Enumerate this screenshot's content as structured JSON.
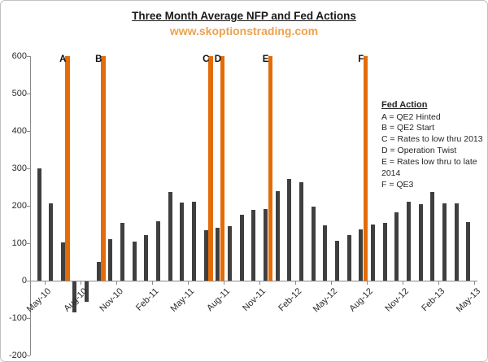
{
  "chart_data": {
    "type": "bar",
    "title": "Three Month Average NFP and Fed Actions",
    "subtitle": "www.skoptionstrading.com",
    "categories": [
      "May-10",
      "Jun-10",
      "Jul-10",
      "Aug-10",
      "Sep-10",
      "Oct-10",
      "Nov-10",
      "Dec-10",
      "Jan-11",
      "Feb-11",
      "Mar-11",
      "Apr-11",
      "May-11",
      "Jun-11",
      "Jul-11",
      "Aug-11",
      "Sep-11",
      "Oct-11",
      "Nov-11",
      "Dec-11",
      "Jan-12",
      "Feb-12",
      "Mar-12",
      "Apr-12",
      "May-12",
      "Jun-12",
      "Jul-12",
      "Aug-12",
      "Sep-12",
      "Oct-12",
      "Nov-12",
      "Dec-12",
      "Jan-13",
      "Feb-13",
      "Mar-13",
      "Apr-13",
      "May-13"
    ],
    "values": [
      300,
      207,
      103,
      -82,
      -55,
      50,
      110,
      155,
      105,
      122,
      158,
      237,
      208,
      211,
      134,
      141,
      146,
      176,
      189,
      191,
      239,
      271,
      262,
      197,
      147,
      107,
      122,
      137,
      151,
      154,
      182,
      211,
      205,
      236,
      207,
      207,
      156
    ],
    "x_tick_labels": [
      "May-10",
      "Aug-10",
      "Nov-10",
      "Feb-11",
      "May-11",
      "Aug-11",
      "Nov-11",
      "Feb-12",
      "May-12",
      "Aug-12",
      "Nov-12",
      "Feb-13",
      "May-13"
    ],
    "x_label_interval": 3,
    "y_ticks": [
      600,
      500,
      400,
      300,
      200,
      100,
      0,
      -100,
      -200
    ],
    "ylim": [
      -200,
      600
    ],
    "grid": false,
    "legend_position": "inside-right",
    "fed_action_markers": [
      {
        "letter": "A",
        "month": "Jul-10"
      },
      {
        "letter": "B",
        "month": "Oct-10"
      },
      {
        "letter": "C",
        "month": "Jul-11"
      },
      {
        "letter": "D",
        "month": "Aug-11"
      },
      {
        "letter": "E",
        "month": "Dec-11"
      },
      {
        "letter": "F",
        "month": "Aug-12"
      }
    ],
    "legend": {
      "title": "Fed Action",
      "entries": [
        "A = QE2 Hinted",
        "B = QE2 Start",
        "C = Rates to low thru 2013",
        "D = Operation Twist",
        "E = Rates low thru to late 2014",
        "F  = QE3"
      ]
    },
    "colors": {
      "nfp_bar": "#3F3F3F",
      "fed_action_bar": "#E36C09",
      "subtitle_text": "#EDA24E",
      "axis": "#898989",
      "tick_text": "#2B2B2B"
    }
  }
}
